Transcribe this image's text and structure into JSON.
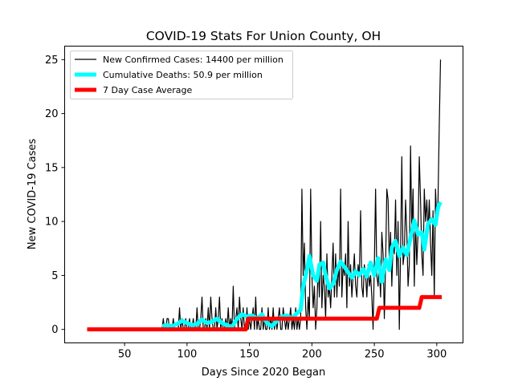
{
  "chart_data": {
    "type": "line",
    "title": "COVID-19 Stats For Union County, OH",
    "xlabel": "Days Since 2020 Began",
    "ylabel": "New COVID-19 Cases",
    "xlim": [
      2,
      321
    ],
    "ylim": [
      -1.25,
      26.25
    ],
    "x_ticks": [
      50,
      100,
      150,
      200,
      250,
      300
    ],
    "y_ticks": [
      0,
      5,
      10,
      15,
      20,
      25
    ],
    "x_tick_labels": [
      "50",
      "100",
      "150",
      "200",
      "250",
      "300"
    ],
    "y_tick_labels": [
      "0",
      "5",
      "10",
      "15",
      "20",
      "25"
    ],
    "grid": false,
    "legend_position": "top-left",
    "series": [
      {
        "name": "New Confirmed Cases: 14400 per million",
        "color": "#000000",
        "points": [
          [
            80,
            0
          ],
          [
            81,
            1
          ],
          [
            82,
            0
          ],
          [
            83,
            0
          ],
          [
            84,
            1
          ],
          [
            85,
            1
          ],
          [
            86,
            0
          ],
          [
            87,
            0
          ],
          [
            88,
            0
          ],
          [
            89,
            1
          ],
          [
            90,
            0
          ],
          [
            91,
            0
          ],
          [
            92,
            0
          ],
          [
            93,
            0
          ],
          [
            94,
            2
          ],
          [
            95,
            0
          ],
          [
            96,
            1
          ],
          [
            97,
            0
          ],
          [
            98,
            0
          ],
          [
            99,
            1
          ],
          [
            100,
            0
          ],
          [
            101,
            0
          ],
          [
            102,
            1
          ],
          [
            103,
            0
          ],
          [
            104,
            0
          ],
          [
            105,
            1
          ],
          [
            106,
            0
          ],
          [
            107,
            0
          ],
          [
            108,
            2
          ],
          [
            109,
            0
          ],
          [
            110,
            0
          ],
          [
            111,
            1
          ],
          [
            112,
            3
          ],
          [
            113,
            0
          ],
          [
            114,
            0
          ],
          [
            115,
            1
          ],
          [
            116,
            0
          ],
          [
            117,
            2
          ],
          [
            118,
            0
          ],
          [
            119,
            3
          ],
          [
            120,
            1
          ],
          [
            121,
            0
          ],
          [
            122,
            0
          ],
          [
            123,
            2
          ],
          [
            124,
            0
          ],
          [
            125,
            1
          ],
          [
            126,
            3
          ],
          [
            127,
            0
          ],
          [
            128,
            1
          ],
          [
            129,
            0
          ],
          [
            130,
            0
          ],
          [
            131,
            1
          ],
          [
            132,
            0
          ],
          [
            133,
            2
          ],
          [
            134,
            0
          ],
          [
            135,
            1
          ],
          [
            136,
            0
          ],
          [
            137,
            4
          ],
          [
            138,
            0
          ],
          [
            139,
            1
          ],
          [
            140,
            2
          ],
          [
            141,
            0
          ],
          [
            142,
            3
          ],
          [
            143,
            1
          ],
          [
            144,
            0
          ],
          [
            145,
            2
          ],
          [
            146,
            0
          ],
          [
            147,
            0
          ],
          [
            148,
            2
          ],
          [
            149,
            0
          ],
          [
            150,
            1
          ],
          [
            151,
            0
          ],
          [
            152,
            1
          ],
          [
            153,
            2
          ],
          [
            154,
            0
          ],
          [
            155,
            3
          ],
          [
            156,
            0
          ],
          [
            157,
            1
          ],
          [
            158,
            0
          ],
          [
            159,
            0
          ],
          [
            160,
            2
          ],
          [
            161,
            0
          ],
          [
            162,
            1
          ],
          [
            163,
            0
          ],
          [
            164,
            0
          ],
          [
            165,
            2
          ],
          [
            166,
            0
          ],
          [
            167,
            1
          ],
          [
            168,
            0
          ],
          [
            169,
            2
          ],
          [
            170,
            0
          ],
          [
            171,
            1
          ],
          [
            172,
            0
          ],
          [
            173,
            1
          ],
          [
            174,
            2
          ],
          [
            175,
            0
          ],
          [
            176,
            0
          ],
          [
            177,
            2
          ],
          [
            178,
            1
          ],
          [
            179,
            0
          ],
          [
            180,
            1
          ],
          [
            181,
            0
          ],
          [
            182,
            1
          ],
          [
            183,
            2
          ],
          [
            184,
            0
          ],
          [
            185,
            1
          ],
          [
            186,
            0
          ],
          [
            187,
            2
          ],
          [
            188,
            0
          ],
          [
            189,
            1
          ],
          [
            190,
            0
          ],
          [
            191,
            1
          ],
          [
            192,
            13
          ],
          [
            193,
            5
          ],
          [
            194,
            8
          ],
          [
            195,
            2
          ],
          [
            196,
            0
          ],
          [
            197,
            3
          ],
          [
            198,
            1
          ],
          [
            199,
            13
          ],
          [
            200,
            5
          ],
          [
            201,
            2
          ],
          [
            202,
            4
          ],
          [
            203,
            0
          ],
          [
            204,
            2
          ],
          [
            205,
            6
          ],
          [
            206,
            3
          ],
          [
            207,
            10
          ],
          [
            208,
            2
          ],
          [
            209,
            5
          ],
          [
            210,
            4
          ],
          [
            211,
            1
          ],
          [
            212,
            7
          ],
          [
            213,
            3
          ],
          [
            214,
            4
          ],
          [
            215,
            2
          ],
          [
            216,
            5
          ],
          [
            217,
            8
          ],
          [
            218,
            3
          ],
          [
            219,
            7
          ],
          [
            220,
            3
          ],
          [
            221,
            6
          ],
          [
            222,
            4
          ],
          [
            223,
            13
          ],
          [
            224,
            3
          ],
          [
            225,
            6
          ],
          [
            226,
            5
          ],
          [
            227,
            7
          ],
          [
            228,
            2
          ],
          [
            229,
            10
          ],
          [
            230,
            4
          ],
          [
            231,
            6
          ],
          [
            232,
            3
          ],
          [
            233,
            5
          ],
          [
            234,
            7
          ],
          [
            235,
            4
          ],
          [
            236,
            3
          ],
          [
            237,
            6
          ],
          [
            238,
            5
          ],
          [
            239,
            11
          ],
          [
            240,
            4
          ],
          [
            241,
            3
          ],
          [
            242,
            6
          ],
          [
            243,
            5
          ],
          [
            244,
            3
          ],
          [
            245,
            6
          ],
          [
            246,
            4
          ],
          [
            247,
            5
          ],
          [
            248,
            3
          ],
          [
            249,
            0
          ],
          [
            250,
            6
          ],
          [
            251,
            13
          ],
          [
            252,
            5
          ],
          [
            253,
            4
          ],
          [
            254,
            6
          ],
          [
            255,
            3
          ],
          [
            256,
            9
          ],
          [
            257,
            7
          ],
          [
            258,
            1
          ],
          [
            259,
            6
          ],
          [
            260,
            13
          ],
          [
            261,
            12
          ],
          [
            262,
            6
          ],
          [
            263,
            9
          ],
          [
            264,
            4
          ],
          [
            265,
            8
          ],
          [
            266,
            7
          ],
          [
            267,
            12
          ],
          [
            268,
            5
          ],
          [
            269,
            10
          ],
          [
            270,
            0
          ],
          [
            271,
            7
          ],
          [
            272,
            16
          ],
          [
            273,
            6
          ],
          [
            274,
            7
          ],
          [
            275,
            12
          ],
          [
            276,
            9
          ],
          [
            277,
            4
          ],
          [
            278,
            6
          ],
          [
            279,
            17
          ],
          [
            280,
            9
          ],
          [
            281,
            13
          ],
          [
            282,
            4
          ],
          [
            283,
            10
          ],
          [
            284,
            6
          ],
          [
            285,
            9
          ],
          [
            286,
            16
          ],
          [
            287,
            12
          ],
          [
            288,
            7
          ],
          [
            289,
            5
          ],
          [
            290,
            13
          ],
          [
            291,
            10
          ],
          [
            292,
            12
          ],
          [
            293,
            9
          ],
          [
            294,
            12
          ],
          [
            295,
            8
          ],
          [
            296,
            5
          ],
          [
            297,
            11
          ],
          [
            298,
            3
          ],
          [
            299,
            13
          ],
          [
            300,
            10
          ],
          [
            301,
            12
          ],
          [
            302,
            19
          ],
          [
            303,
            25
          ]
        ]
      },
      {
        "name": "Cumulative Deaths: 50.9 per million",
        "color": "#00ffff",
        "points": [
          [
            80,
            0.3
          ],
          [
            84,
            0.4
          ],
          [
            88,
            0.3
          ],
          [
            92,
            0.5
          ],
          [
            96,
            0.8
          ],
          [
            100,
            0.6
          ],
          [
            104,
            0.4
          ],
          [
            108,
            0.5
          ],
          [
            112,
            0.9
          ],
          [
            116,
            0.6
          ],
          [
            120,
            0.7
          ],
          [
            124,
            1.0
          ],
          [
            128,
            0.6
          ],
          [
            132,
            0.4
          ],
          [
            136,
            0.2
          ],
          [
            140,
            1.0
          ],
          [
            144,
            1.4
          ],
          [
            148,
            1.2
          ],
          [
            152,
            1.3
          ],
          [
            156,
            1.0
          ],
          [
            160,
            1.4
          ],
          [
            164,
            0.6
          ],
          [
            168,
            0.3
          ],
          [
            172,
            0.8
          ],
          [
            176,
            1.2
          ],
          [
            180,
            1.3
          ],
          [
            184,
            1.0
          ],
          [
            188,
            1.5
          ],
          [
            191,
            1.8
          ],
          [
            193,
            4.0
          ],
          [
            196,
            5.5
          ],
          [
            198,
            6.8
          ],
          [
            201,
            5.0
          ],
          [
            204,
            4.5
          ],
          [
            206,
            6.0
          ],
          [
            209,
            6.2
          ],
          [
            211,
            5.0
          ],
          [
            214,
            3.8
          ],
          [
            217,
            4.2
          ],
          [
            220,
            5.5
          ],
          [
            223,
            6.3
          ],
          [
            226,
            5.8
          ],
          [
            229,
            5.3
          ],
          [
            232,
            4.8
          ],
          [
            235,
            5.4
          ],
          [
            238,
            5.0
          ],
          [
            241,
            5.6
          ],
          [
            244,
            4.9
          ],
          [
            247,
            6.2
          ],
          [
            250,
            5.0
          ],
          [
            253,
            6.6
          ],
          [
            256,
            4.4
          ],
          [
            259,
            6.5
          ],
          [
            262,
            5.5
          ],
          [
            264,
            7.6
          ],
          [
            267,
            8.2
          ],
          [
            270,
            6.8
          ],
          [
            273,
            7.6
          ],
          [
            276,
            6.9
          ],
          [
            279,
            8.5
          ],
          [
            282,
            10.1
          ],
          [
            285,
            8.8
          ],
          [
            288,
            9.0
          ],
          [
            290,
            7.4
          ],
          [
            293,
            9.8
          ],
          [
            296,
            10.2
          ],
          [
            299,
            9.7
          ],
          [
            301,
            11.3
          ],
          [
            303,
            11.8
          ]
        ]
      },
      {
        "name": "7 Day Case Average",
        "color": "#ff0000",
        "points": [
          [
            20,
            0
          ],
          [
            147,
            0
          ],
          [
            148,
            0.5
          ],
          [
            149,
            1
          ],
          [
            252,
            1
          ],
          [
            253,
            1.5
          ],
          [
            254,
            2
          ],
          [
            286,
            2
          ],
          [
            287,
            2.5
          ],
          [
            288,
            3
          ],
          [
            304,
            3
          ]
        ]
      }
    ]
  }
}
